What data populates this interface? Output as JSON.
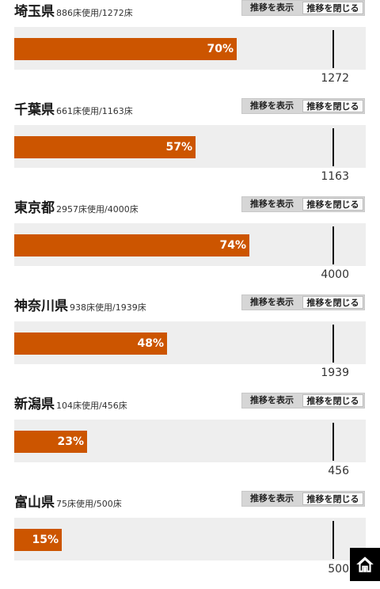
{
  "buttons": {
    "show_label": "推移を表示",
    "close_label": "推移を閉じる"
  },
  "colors": {
    "bar_fill": "#cc5500",
    "track": "#eeeeee"
  },
  "prefectures": [
    {
      "name": "埼玉県",
      "usage": "886床使用/1272床",
      "percent_label": "70%",
      "capacity": "1272",
      "rate": 0.7
    },
    {
      "name": "千葉県",
      "usage": "661床使用/1163床",
      "percent_label": "57%",
      "capacity": "1163",
      "rate": 0.57
    },
    {
      "name": "東京都",
      "usage": "2957床使用/4000床",
      "percent_label": "74%",
      "capacity": "4000",
      "rate": 0.74
    },
    {
      "name": "神奈川県",
      "usage": "938床使用/1939床",
      "percent_label": "48%",
      "capacity": "1939",
      "rate": 0.48
    },
    {
      "name": "新潟県",
      "usage": "104床使用/456床",
      "percent_label": "23%",
      "capacity": "456",
      "rate": 0.23
    },
    {
      "name": "富山県",
      "usage": "75床使用/500床",
      "percent_label": "15%",
      "capacity": "500",
      "rate": 0.15
    }
  ],
  "home_icon": "home-icon"
}
